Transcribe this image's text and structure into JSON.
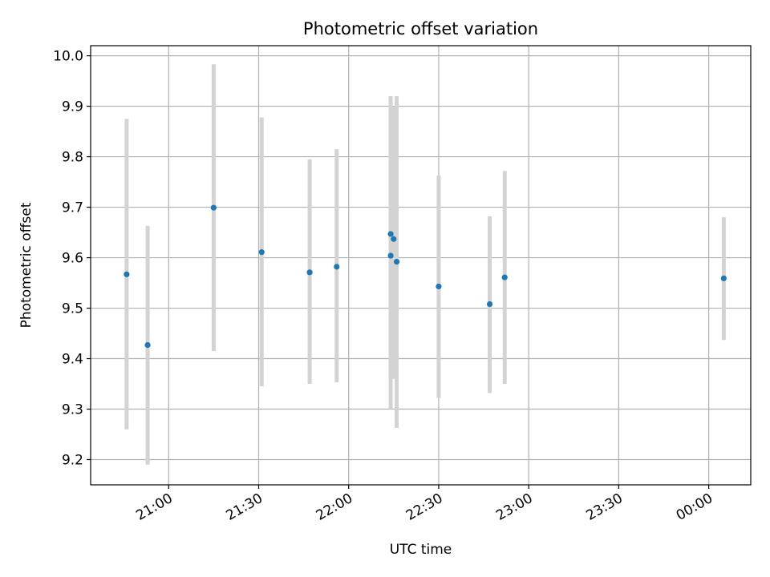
{
  "chart_data": {
    "type": "scatter",
    "title": "Photometric offset variation",
    "xlabel": "UTC time",
    "ylabel": "Photometric offset",
    "grid": true,
    "x_ticks": [
      "21:00",
      "21:30",
      "22:00",
      "22:30",
      "23:00",
      "23:30",
      "00:00"
    ],
    "y_ticks": [
      "9.2",
      "9.3",
      "9.4",
      "9.5",
      "9.6",
      "9.7",
      "9.8",
      "9.9",
      "10.0"
    ],
    "ylim": [
      9.15,
      10.02
    ],
    "xlim": [
      "20:34",
      "00:14"
    ],
    "colors": {
      "point": "#1f77b4",
      "errorbar": "#d3d3d3",
      "grid": "#b0b0b0"
    },
    "points": [
      {
        "x": "20:46",
        "y": 9.567,
        "err_low": 9.26,
        "err_high": 9.875
      },
      {
        "x": "20:53",
        "y": 9.427,
        "err_low": 9.19,
        "err_high": 9.663
      },
      {
        "x": "21:15",
        "y": 9.699,
        "err_low": 9.415,
        "err_high": 9.983
      },
      {
        "x": "21:31",
        "y": 9.611,
        "err_low": 9.345,
        "err_high": 9.878
      },
      {
        "x": "21:47",
        "y": 9.571,
        "err_low": 9.35,
        "err_high": 9.795
      },
      {
        "x": "21:56",
        "y": 9.582,
        "err_low": 9.353,
        "err_high": 9.815
      },
      {
        "x": "22:14",
        "y": 9.604,
        "err_low": 9.3,
        "err_high": 9.92
      },
      {
        "x": "22:14",
        "y": 9.647,
        "err_low": 9.36,
        "err_high": 9.92
      },
      {
        "x": "22:15",
        "y": 9.637,
        "err_low": 9.36,
        "err_high": 9.9
      },
      {
        "x": "22:16",
        "y": 9.592,
        "err_low": 9.263,
        "err_high": 9.92
      },
      {
        "x": "22:30",
        "y": 9.543,
        "err_low": 9.322,
        "err_high": 9.763
      },
      {
        "x": "22:47",
        "y": 9.508,
        "err_low": 9.332,
        "err_high": 9.682
      },
      {
        "x": "22:52",
        "y": 9.561,
        "err_low": 9.35,
        "err_high": 9.772
      },
      {
        "x": "00:05",
        "y": 9.559,
        "err_low": 9.437,
        "err_high": 9.68
      }
    ]
  }
}
